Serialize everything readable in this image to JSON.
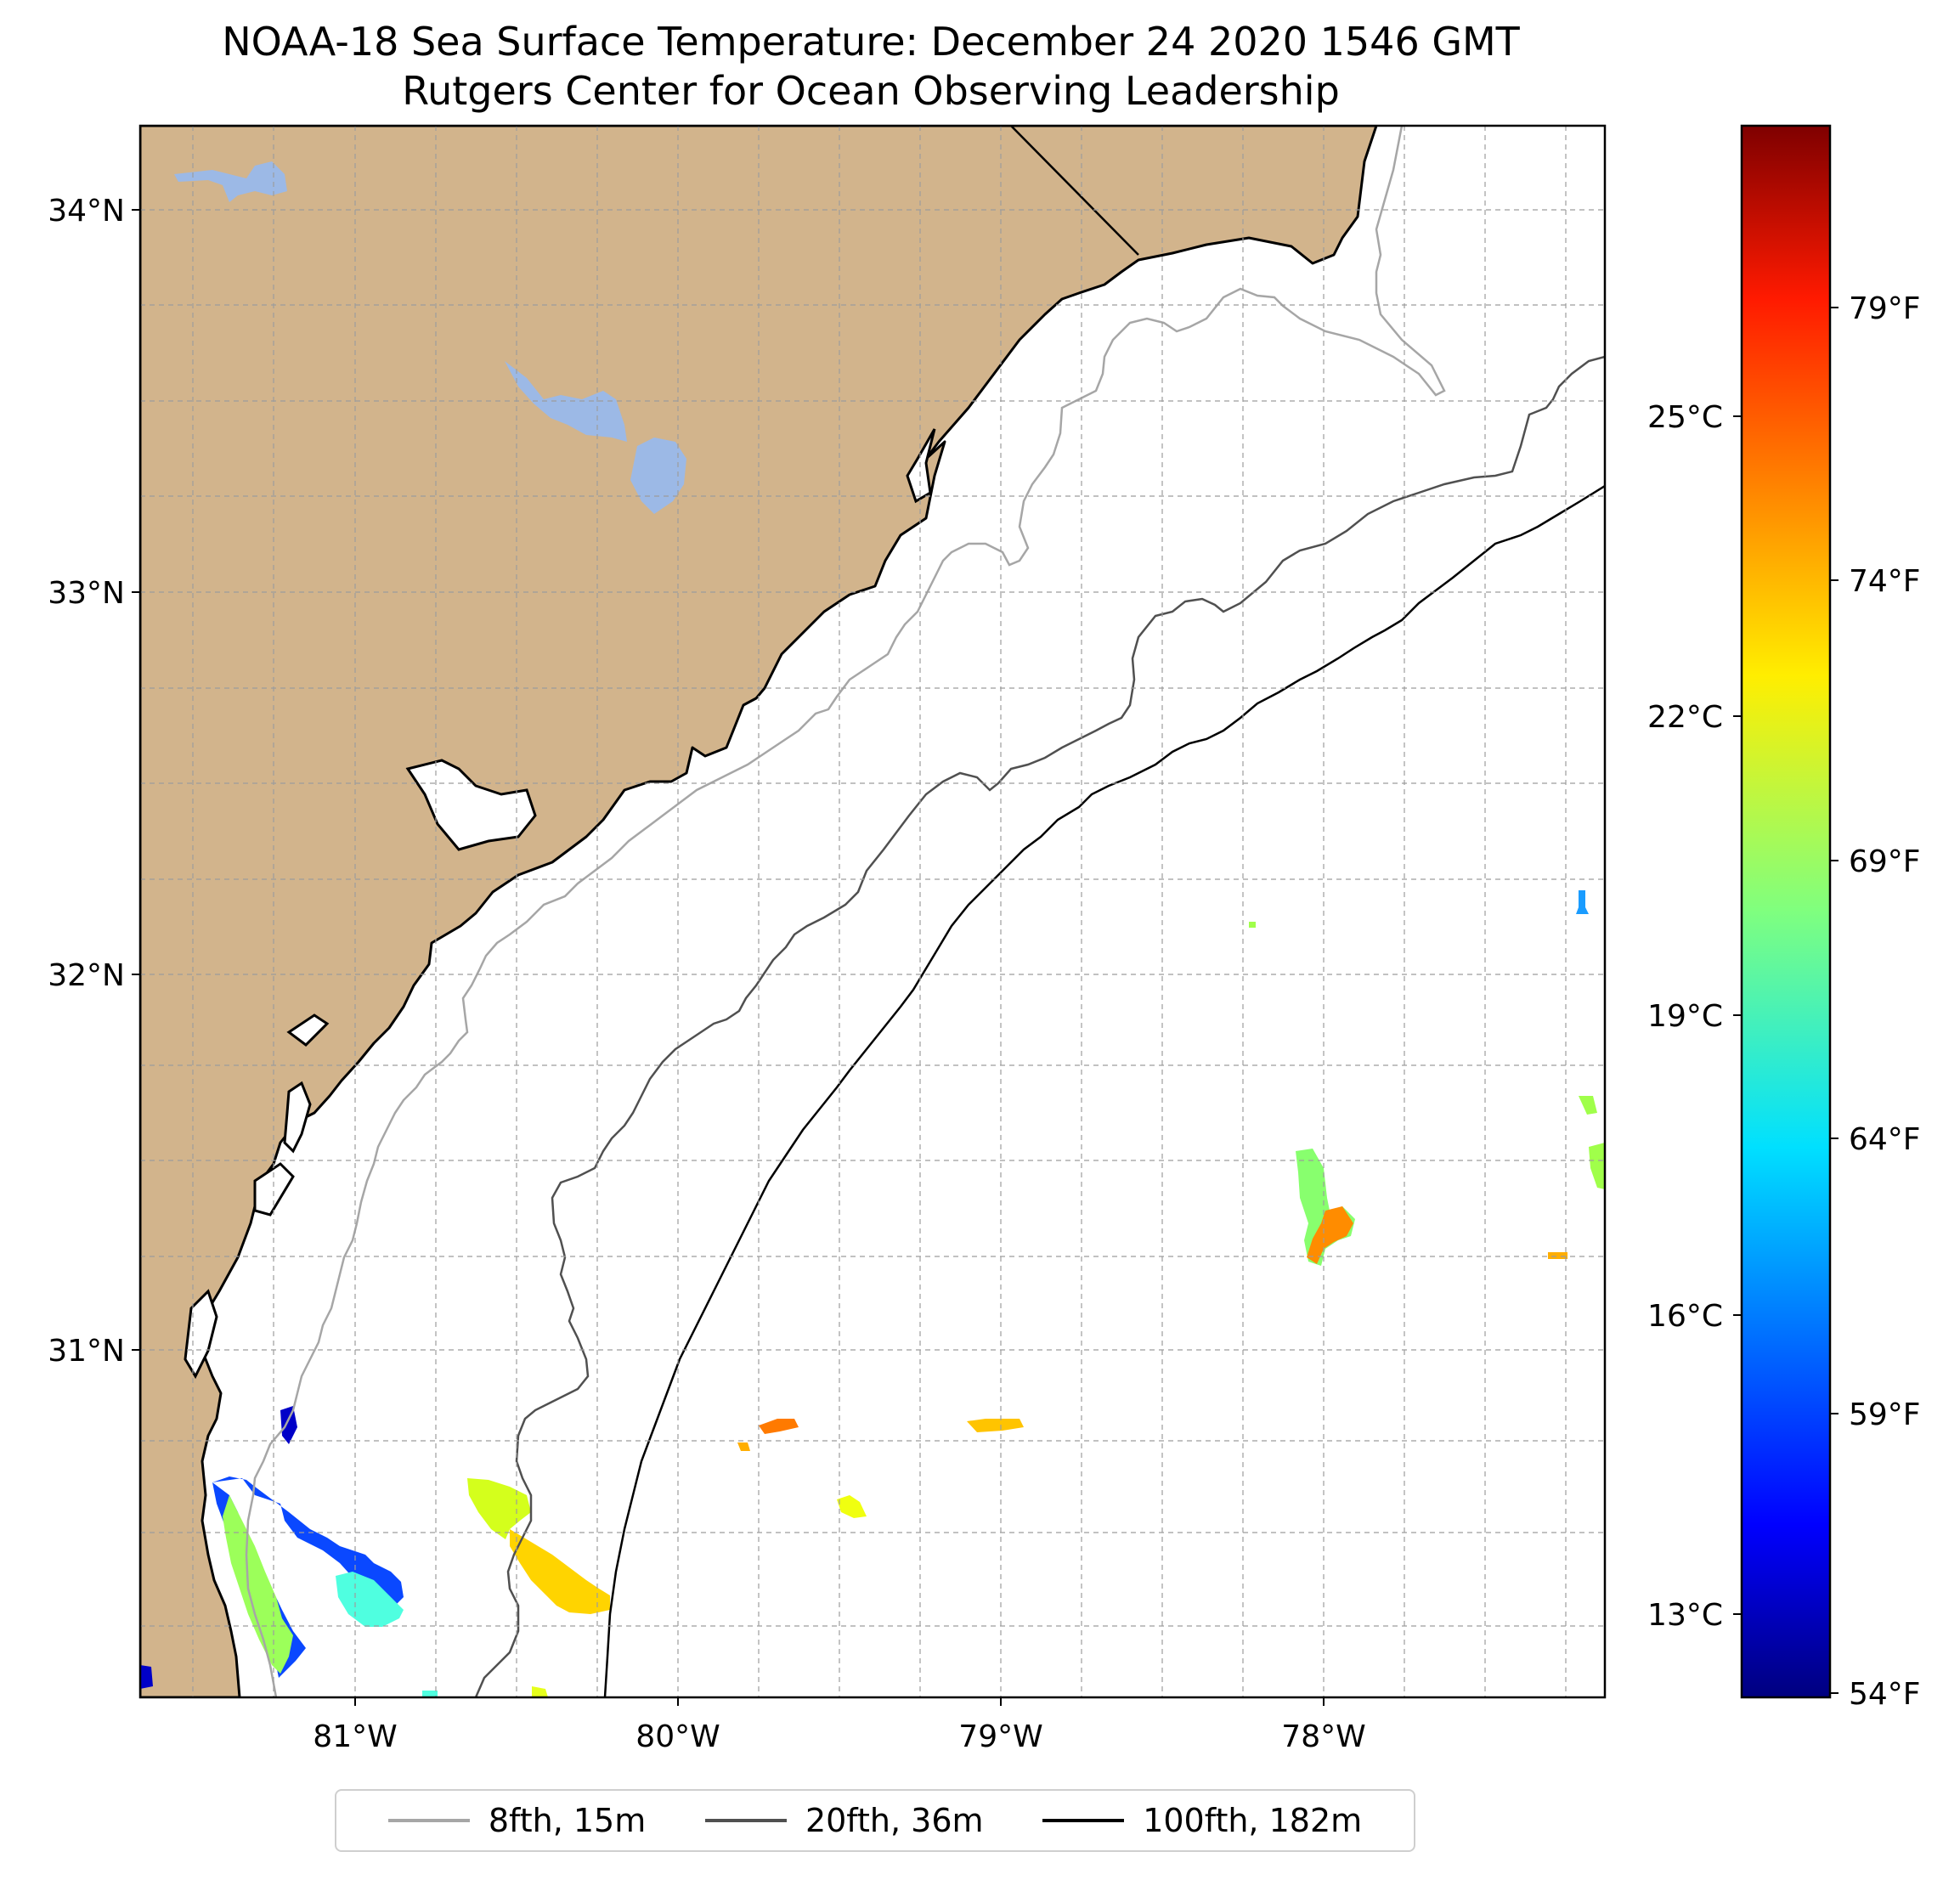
{
  "title": {
    "line1": "NOAA-18 Sea Surface Temperature: December 24 2020 1546 GMT",
    "line2": "Rutgers Center for Ocean Observing Leadership"
  },
  "map": {
    "lat_labels": [
      "34°N",
      "33°N",
      "32°N",
      "31°N"
    ],
    "lon_labels": [
      "81°W",
      "80°W",
      "79°W",
      "78°W"
    ],
    "extent": {
      "lon_min": -81.67,
      "lon_max": -77.13,
      "lat_min": 30.4,
      "lat_max": 34.22
    },
    "land_color": "#d2b48c",
    "water_body_color": "#9cb9e6",
    "grid": "dashed",
    "sst_patches": [
      {
        "lon": -81.2,
        "lat": 30.5,
        "temp_c": 15.5
      },
      {
        "lon": -80.4,
        "lat": 30.55,
        "temp_c": 22.0
      },
      {
        "lon": -79.7,
        "lat": 30.75,
        "temp_c": 25.0
      },
      {
        "lon": -79.0,
        "lat": 30.76,
        "temp_c": 24.5
      },
      {
        "lon": -78.0,
        "lat": 31.3,
        "temp_c": 21.5
      },
      {
        "lon": -77.2,
        "lat": 31.5,
        "temp_c": 21.0
      }
    ]
  },
  "colorbar": {
    "celsius_ticks": [
      "25°C",
      "22°C",
      "19°C",
      "16°C",
      "13°C"
    ],
    "fahrenheit_ticks": [
      "79°F",
      "74°F",
      "69°F",
      "64°F",
      "59°F",
      "54°F"
    ],
    "colormap": "jet",
    "range_f": [
      53.6,
      82.4
    ]
  },
  "legend": {
    "location": "bottom-center",
    "items": [
      {
        "label": "8fth, 15m",
        "color": "#a6a6a6"
      },
      {
        "label": "20fth, 36m",
        "color": "#505050"
      },
      {
        "label": "100fth, 182m",
        "color": "#000000"
      }
    ]
  }
}
